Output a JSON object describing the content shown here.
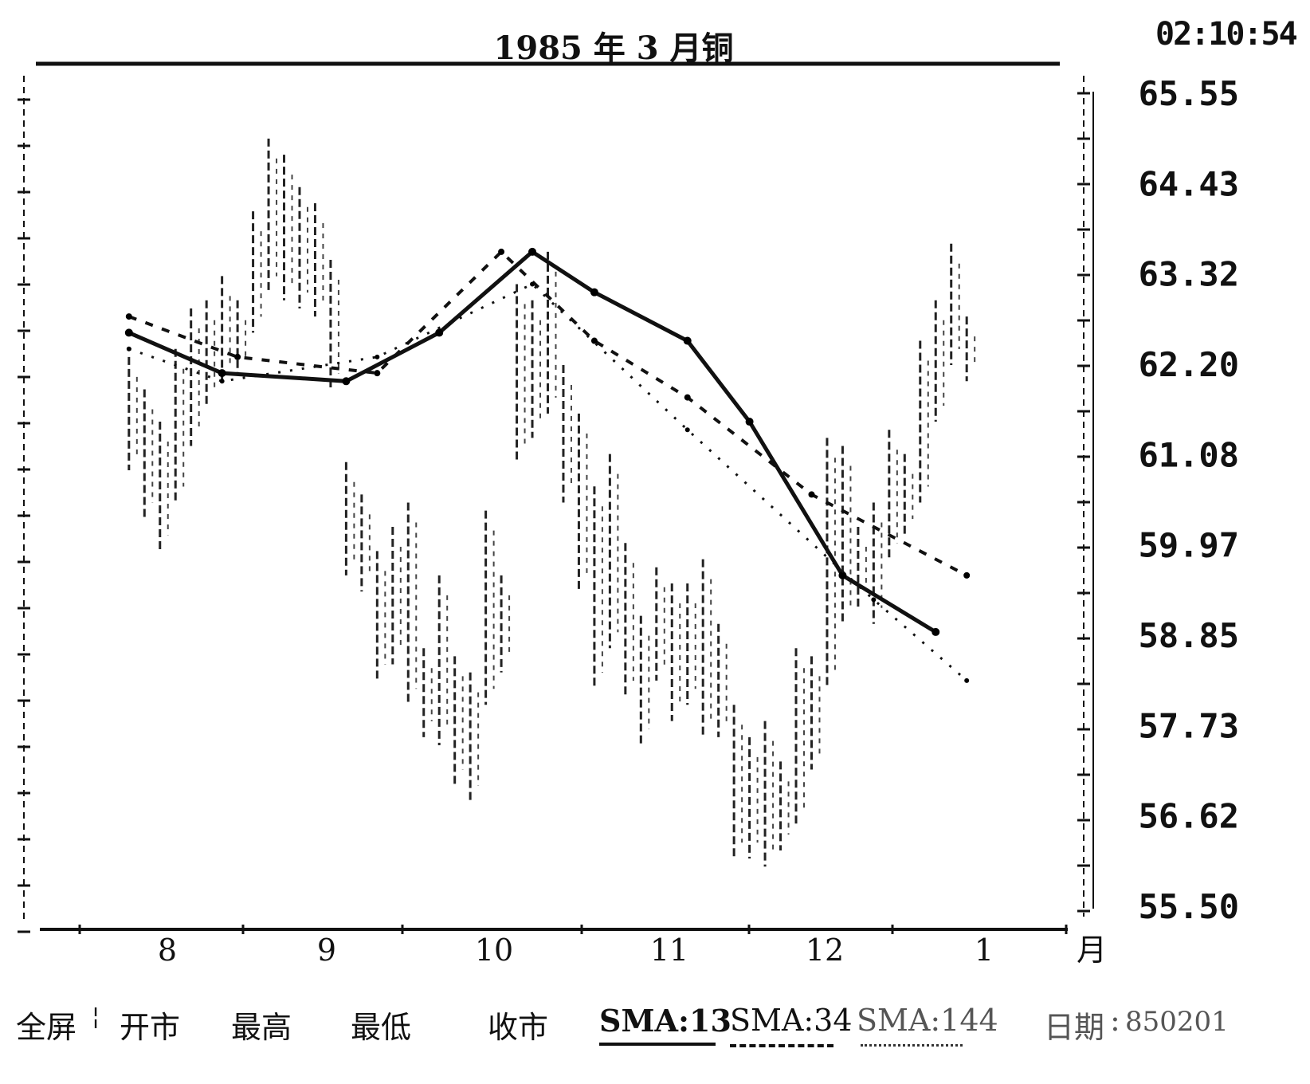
{
  "header": {
    "title": "1985 年 3 月铜",
    "clock": "02:10:54"
  },
  "footer": {
    "items": [
      "全屏",
      "开市",
      "最高",
      "最低",
      "收市"
    ],
    "sma13": "SMA:13",
    "sma34": "SMA:34",
    "sma144": "SMA:144",
    "date_label": "日期",
    "date_value": "850201"
  },
  "chart_data": {
    "type": "bar",
    "subtype": "ohlc-with-moving-averages",
    "title": "1985 年 3 月铜",
    "x_axis_label": "月",
    "x_months": [
      "8",
      "9",
      "10",
      "11",
      "12",
      "1"
    ],
    "y_ticks": [
      "65.55",
      "64.43",
      "63.32",
      "62.20",
      "61.08",
      "59.97",
      "58.85",
      "57.73",
      "56.62",
      "55.50"
    ],
    "ylim": [
      55.5,
      65.55
    ],
    "grid": false,
    "series": [
      {
        "name": "SMA:13",
        "style": "solid",
        "x": [
          0.6,
          1.2,
          2.0,
          2.6,
          3.2,
          3.6,
          4.2,
          4.6,
          5.2,
          5.8
        ],
        "values": [
          62.6,
          62.1,
          62.0,
          62.6,
          63.6,
          63.1,
          62.5,
          61.5,
          59.6,
          58.9
        ]
      },
      {
        "name": "SMA:34",
        "style": "dashed",
        "x": [
          0.6,
          1.3,
          2.2,
          3.0,
          3.6,
          4.2,
          5.0,
          6.0
        ],
        "values": [
          62.8,
          62.3,
          62.1,
          63.6,
          62.5,
          61.8,
          60.6,
          59.6
        ]
      },
      {
        "name": "SMA:144",
        "style": "dotted",
        "x": [
          0.6,
          1.2,
          2.2,
          3.2,
          4.2,
          5.4,
          6.0
        ],
        "values": [
          62.4,
          62.0,
          62.3,
          63.2,
          61.4,
          59.3,
          58.3
        ]
      }
    ],
    "ohlc_x": [
      0.6,
      0.7,
      0.8,
      0.9,
      1.0,
      1.1,
      1.2,
      1.3,
      1.4,
      1.5,
      1.6,
      1.7,
      1.8,
      1.9,
      2.0,
      2.1,
      2.2,
      2.3,
      2.4,
      2.5,
      2.6,
      2.7,
      2.8,
      2.9,
      3.0,
      3.1,
      3.2,
      3.3,
      3.4,
      3.5,
      3.6,
      3.7,
      3.8,
      3.9,
      4.0,
      4.1,
      4.2,
      4.3,
      4.4,
      4.5,
      4.6,
      4.7,
      4.8,
      4.9,
      5.0,
      5.1,
      5.2,
      5.3,
      5.4,
      5.5,
      5.6,
      5.7,
      5.8,
      5.9,
      6.0
    ],
    "ohlc_high": [
      62.3,
      61.9,
      61.5,
      62.4,
      62.9,
      63.0,
      63.3,
      63.0,
      64.1,
      65.0,
      64.8,
      64.4,
      64.2,
      63.5,
      61.0,
      60.6,
      59.9,
      60.2,
      60.5,
      58.7,
      59.6,
      58.6,
      58.4,
      60.4,
      59.6,
      63.2,
      63.0,
      63.6,
      62.2,
      61.6,
      60.7,
      61.1,
      60.0,
      59.1,
      59.7,
      59.5,
      59.5,
      59.8,
      59.0,
      58.0,
      57.6,
      57.8,
      57.3,
      58.7,
      58.6,
      61.3,
      61.2,
      60.2,
      60.5,
      61.4,
      61.1,
      62.5,
      63.0,
      63.7,
      62.8
    ],
    "ohlc_low": [
      60.9,
      60.3,
      59.9,
      60.5,
      61.2,
      61.7,
      62.0,
      62.1,
      62.6,
      63.1,
      63.0,
      62.9,
      62.8,
      61.9,
      59.6,
      59.4,
      58.3,
      58.5,
      58.0,
      57.6,
      57.5,
      57.0,
      56.8,
      58.0,
      58.4,
      61.0,
      61.3,
      61.6,
      60.5,
      59.4,
      58.2,
      58.7,
      58.1,
      57.5,
      58.3,
      57.8,
      58.0,
      57.6,
      57.6,
      56.1,
      56.1,
      56.0,
      56.2,
      56.5,
      57.2,
      58.2,
      59.0,
      59.2,
      59.0,
      59.8,
      60.1,
      60.5,
      61.5,
      62.2,
      62.0
    ],
    "legend": [
      "SMA:13",
      "SMA:34",
      "SMA:144"
    ],
    "date": "850201"
  }
}
